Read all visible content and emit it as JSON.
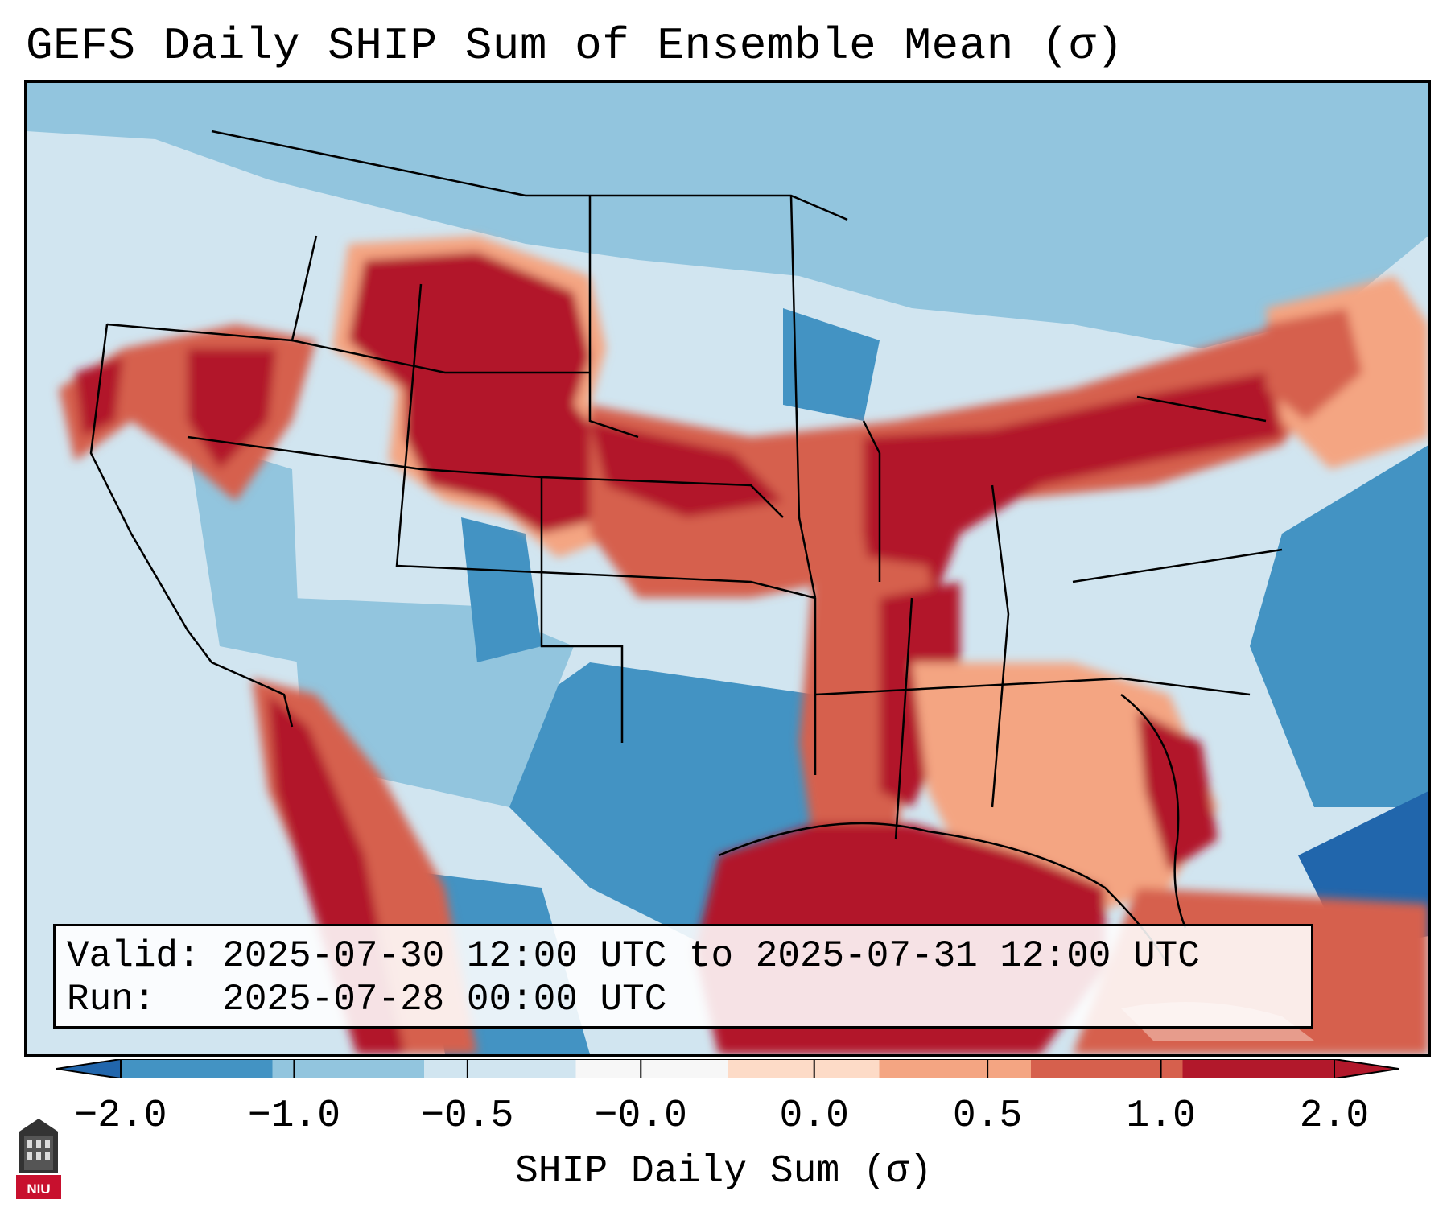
{
  "title": "GEFS Daily SHIP Sum of Ensemble Mean (σ)",
  "info": {
    "valid_line": "Valid: 2025-07-30 12:00 UTC to 2025-07-31 12:00 UTC",
    "run_line": "Run:   2025-07-28 00:00 UTC"
  },
  "colorbar": {
    "label": "SHIP Daily Sum (σ)",
    "ticks": [
      "−2.0",
      "−1.0",
      "−0.5",
      "−0.0",
      "0.0",
      "0.5",
      "1.0",
      "2.0"
    ],
    "colors": [
      "#4393c3",
      "#92c5de",
      "#d1e5f0",
      "#f7f7f7",
      "#fddbc7",
      "#f4a582",
      "#d6604d",
      "#b2182b"
    ],
    "extend_low_color": "#2166ac",
    "extend_high_color": "#b2182b"
  },
  "map": {
    "region": "Continental United States",
    "hotspots": [
      "Northern Rockies / Montana–Wyoming",
      "Ohio Valley / Midwest",
      "Gulf of Mexico",
      "Southeast coast"
    ]
  },
  "logo": {
    "text": "NIU"
  }
}
